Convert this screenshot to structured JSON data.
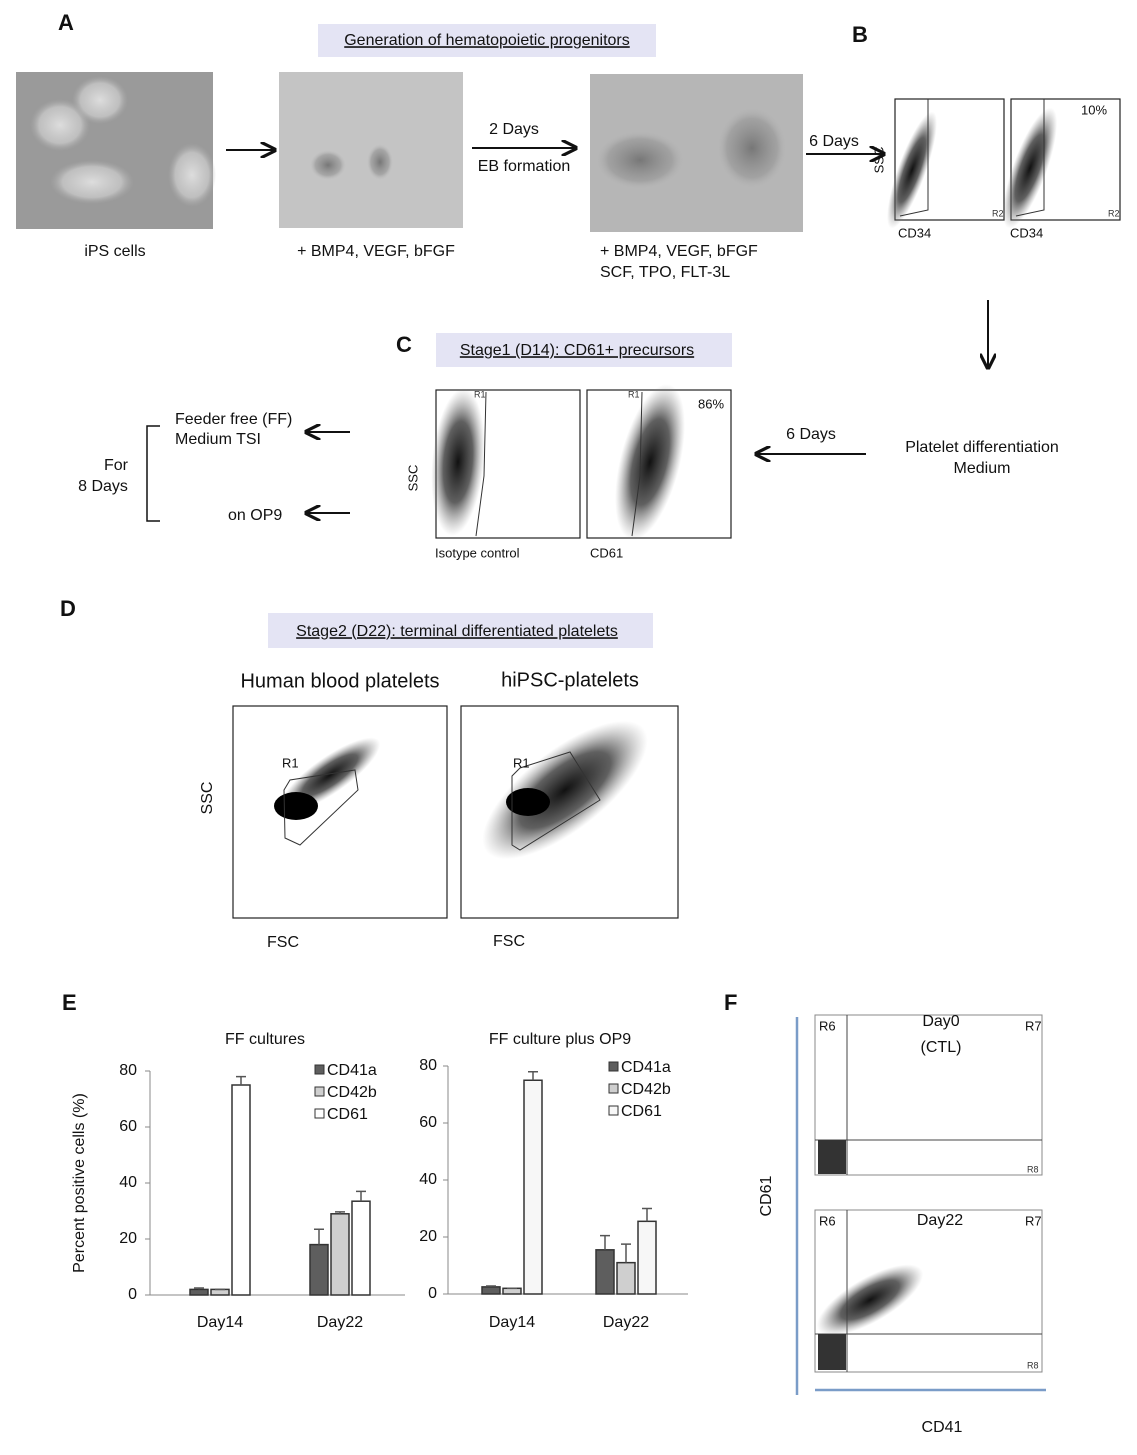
{
  "panel_labels": [
    "A",
    "B",
    "C",
    "D",
    "E",
    "F"
  ],
  "panel_a": {
    "title": "Generation of hematopoietic progenitors",
    "captions": [
      "iPS cells",
      "+ BMP4, VEGF, bFGF",
      "+ BMP4, VEGF, bFGF",
      "SCF, TPO, FLT-3L"
    ],
    "arrow_1": [
      "2 Days",
      "EB formation"
    ],
    "arrow_2": "6 Days"
  },
  "panel_b": {
    "y_label": "SSC",
    "x_labels": [
      "CD34",
      "CD34"
    ],
    "percent": "10%",
    "gate": "R2"
  },
  "panel_c": {
    "title": "Stage1 (D14): CD61+ precursors",
    "y_label": "SSC",
    "x_labels": [
      "Isotype control",
      "CD61"
    ],
    "percent": "86%",
    "gate": "R1",
    "arrow": "6 Days",
    "medium": [
      "Platelet differentiation",
      "Medium"
    ],
    "options": [
      "Feeder free (FF)",
      "Medium TSI",
      "on OP9"
    ],
    "duration": [
      "For",
      "8 Days"
    ]
  },
  "panel_d": {
    "title": "Stage2 (D22): terminal differentiated platelets",
    "y_label": "SSC",
    "plots": [
      {
        "title": "Human blood platelets",
        "gate": "R1",
        "x_label": "FSC"
      },
      {
        "title": "hiPSC-platelets",
        "gate": "R1",
        "x_label": "FSC"
      }
    ]
  },
  "panel_e": {
    "y_label": "Percent positive cells (%)",
    "charts": [
      {
        "type": "bar",
        "title": "FF cultures",
        "categories": [
          "Day14",
          "Day22"
        ],
        "series": [
          {
            "name": "CD41a",
            "color": "#5e5e5e",
            "values": [
              2,
              18
            ],
            "errors": [
              0.5,
              5.5
            ]
          },
          {
            "name": "CD42b",
            "color": "#cfcfcf",
            "values": [
              2,
              29
            ],
            "errors": [
              0,
              0.7
            ]
          },
          {
            "name": "CD61",
            "color": "#ffffff",
            "values": [
              75,
              33.5
            ],
            "errors": [
              3,
              3.5
            ]
          }
        ],
        "ylim": [
          0,
          80
        ],
        "yticks": [
          0,
          20,
          40,
          60,
          80
        ]
      },
      {
        "type": "bar",
        "title": "FF culture plus OP9",
        "categories": [
          "Day14",
          "Day22"
        ],
        "series": [
          {
            "name": "CD41a",
            "color": "#5e5e5e",
            "values": [
              2.5,
              15.5
            ],
            "errors": [
              0.3,
              5
            ]
          },
          {
            "name": "CD42b",
            "color": "#cfcfcf",
            "values": [
              2,
              11
            ],
            "errors": [
              0,
              6.5
            ]
          },
          {
            "name": "CD61",
            "color": "#f7f7f7",
            "values": [
              75,
              25.5
            ],
            "errors": [
              3,
              4.5
            ]
          }
        ],
        "ylim": [
          0,
          80
        ],
        "yticks": [
          0,
          20,
          40,
          60,
          80
        ]
      }
    ]
  },
  "panel_f": {
    "y_label": "CD61",
    "x_label": "CD41",
    "gates": [
      "R6",
      "R7",
      "R8"
    ],
    "plots": [
      [
        "Day0",
        "(CTL)"
      ],
      [
        "Day22"
      ]
    ]
  }
}
